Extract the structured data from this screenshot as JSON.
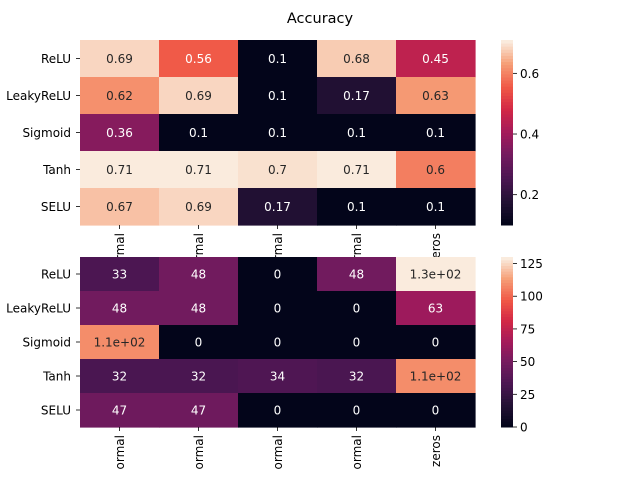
{
  "chart_data": {
    "title": "Accuracy",
    "charts": [
      {
        "type": "heatmap",
        "rows": [
          "ReLU",
          "LeakyReLU",
          "Sigmoid",
          "Tanh",
          "SELU"
        ],
        "columns": [
          "ormal",
          "ormal",
          "ormal",
          "ormal",
          "zeros"
        ],
        "values": [
          [
            0.69,
            0.56,
            0.1,
            0.68,
            0.45
          ],
          [
            0.62,
            0.69,
            0.1,
            0.17,
            0.63
          ],
          [
            0.36,
            0.1,
            0.1,
            0.1,
            0.1
          ],
          [
            0.71,
            0.71,
            0.7,
            0.71,
            0.6
          ],
          [
            0.67,
            0.69,
            0.17,
            0.1,
            0.1
          ]
        ],
        "labels": [
          [
            "0.69",
            "0.56",
            "0.1",
            "0.68",
            "0.45"
          ],
          [
            "0.62",
            "0.69",
            "0.1",
            "0.17",
            "0.63"
          ],
          [
            "0.36",
            "0.1",
            "0.1",
            "0.1",
            "0.1"
          ],
          [
            "0.71",
            "0.71",
            "0.7",
            "0.71",
            "0.6"
          ],
          [
            "0.67",
            "0.69",
            "0.17",
            "0.1",
            "0.1"
          ]
        ],
        "vmin": 0.1,
        "vmax": 0.71,
        "colorbar_ticks": [
          "0.2",
          "0.4",
          "0.6"
        ],
        "colorbar_tick_values": [
          0.2,
          0.4,
          0.6
        ],
        "colormap": "rocket"
      },
      {
        "type": "heatmap",
        "rows": [
          "ReLU",
          "LeakyReLU",
          "Sigmoid",
          "Tanh",
          "SELU"
        ],
        "columns": [
          "ormal",
          "ormal",
          "ormal",
          "ormal",
          "zeros"
        ],
        "values": [
          [
            33,
            48,
            0,
            48,
            130
          ],
          [
            48,
            48,
            0,
            0,
            63
          ],
          [
            110,
            0,
            0,
            0,
            0
          ],
          [
            32,
            32,
            34,
            32,
            110
          ],
          [
            47,
            47,
            0,
            0,
            0
          ]
        ],
        "labels": [
          [
            "33",
            "48",
            "0",
            "48",
            "1.3e+02"
          ],
          [
            "48",
            "48",
            "0",
            "0",
            "63"
          ],
          [
            "1.1e+02",
            "0",
            "0",
            "0",
            "0"
          ],
          [
            "32",
            "32",
            "34",
            "32",
            "1.1e+02"
          ],
          [
            "47",
            "47",
            "0",
            "0",
            "0"
          ]
        ],
        "vmin": 0,
        "vmax": 130,
        "colorbar_ticks": [
          "0",
          "25",
          "50",
          "75",
          "100",
          "125"
        ],
        "colorbar_tick_values": [
          0,
          25,
          50,
          75,
          100,
          125
        ],
        "colormap": "rocket"
      }
    ]
  }
}
